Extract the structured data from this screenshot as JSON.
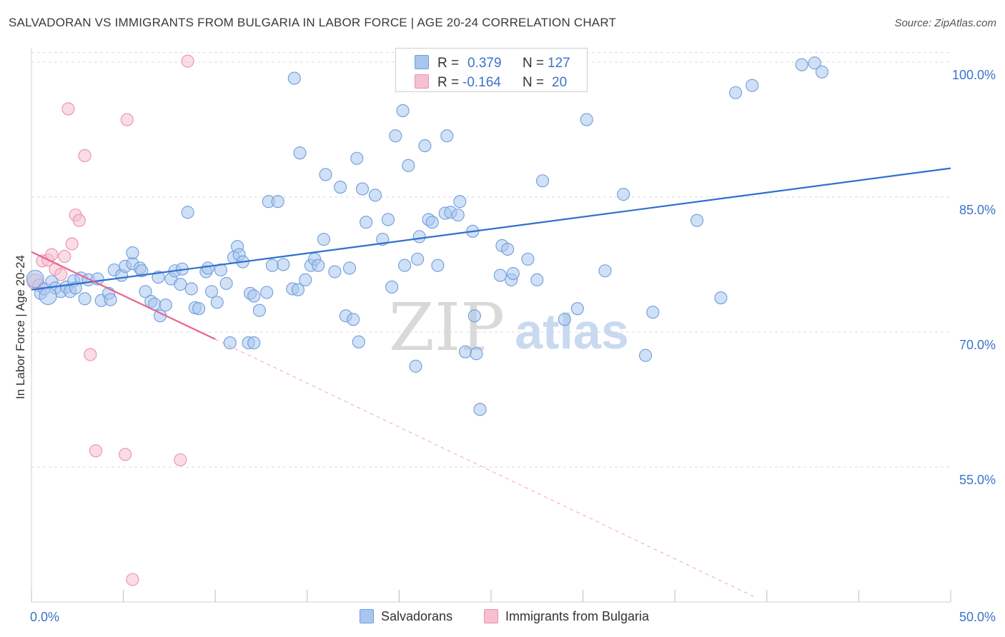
{
  "header": {
    "title": "SALVADORAN VS IMMIGRANTS FROM BULGARIA IN LABOR FORCE | AGE 20-24 CORRELATION CHART",
    "source": "Source: ZipAtlas.com"
  },
  "watermark": {
    "zip": "ZIP",
    "atlas": "atlas"
  },
  "legend_top": {
    "rows": [
      {
        "r_label": "R =",
        "r_value": "0.379",
        "n_label": "N =",
        "n_value": "127",
        "color": "#7aa6e0"
      },
      {
        "r_label": "R =",
        "r_value": "-0.164",
        "n_label": "N =",
        "n_value": "20",
        "color": "#f090ae"
      }
    ]
  },
  "legend_bottom": {
    "items": [
      "Salvadorans",
      "Immigrants from Bulgaria"
    ]
  },
  "colors": {
    "blue_fill": "#a9c6ef",
    "blue_stroke": "#6f9ddc",
    "blue_line": "#2f6fce",
    "pink_fill": "#f6c0d0",
    "pink_stroke": "#ec8fab",
    "pink_line": "#e8648f",
    "axis_text": "#3b74c9",
    "grid": "#dcdcdc"
  },
  "chart_data": {
    "type": "scatter",
    "title": "SALVADORAN VS IMMIGRANTS FROM BULGARIA IN LABOR FORCE | AGE 20-24 CORRELATION CHART",
    "xlabel": "",
    "ylabel": "In Labor Force | Age 20-24",
    "xlim": [
      0,
      50
    ],
    "ylim": [
      40,
      101.5
    ],
    "x_tick_labels": [
      "0.0%",
      "50.0%"
    ],
    "y_ticks": [
      55,
      70,
      85,
      100
    ],
    "y_tick_labels": [
      "55.0%",
      "70.0%",
      "85.0%",
      "100.0%"
    ],
    "grid": true,
    "series": [
      {
        "name": "Salvadorans",
        "r": 0.379,
        "n": 127,
        "trend": {
          "x": [
            0,
            50
          ],
          "y": [
            74.7,
            88.2
          ]
        },
        "points": [
          [
            0.2,
            75.9
          ],
          [
            0.5,
            74.3
          ],
          [
            0.7,
            74.8
          ],
          [
            1.1,
            75.6
          ],
          [
            1.3,
            74.9
          ],
          [
            1.6,
            74.5
          ],
          [
            1.9,
            75.0
          ],
          [
            2.1,
            74.5
          ],
          [
            2.3,
            75.7
          ],
          [
            2.4,
            74.9
          ],
          [
            2.7,
            76.0
          ],
          [
            2.9,
            73.7
          ],
          [
            3.1,
            75.8
          ],
          [
            3.6,
            75.9
          ],
          [
            3.8,
            73.5
          ],
          [
            4.2,
            74.3
          ],
          [
            4.3,
            73.6
          ],
          [
            4.5,
            76.9
          ],
          [
            4.9,
            76.3
          ],
          [
            5.1,
            77.3
          ],
          [
            5.5,
            77.6
          ],
          [
            5.5,
            78.8
          ],
          [
            5.9,
            77.1
          ],
          [
            6.0,
            76.8
          ],
          [
            6.2,
            74.5
          ],
          [
            6.5,
            73.4
          ],
          [
            6.7,
            73.1
          ],
          [
            6.9,
            76.1
          ],
          [
            7.0,
            71.8
          ],
          [
            7.3,
            73.0
          ],
          [
            7.6,
            75.9
          ],
          [
            7.8,
            76.8
          ],
          [
            8.1,
            75.3
          ],
          [
            8.2,
            77.0
          ],
          [
            8.5,
            83.3
          ],
          [
            8.7,
            74.8
          ],
          [
            8.9,
            72.7
          ],
          [
            9.1,
            72.6
          ],
          [
            9.5,
            76.7
          ],
          [
            9.6,
            77.1
          ],
          [
            9.8,
            74.5
          ],
          [
            10.1,
            73.3
          ],
          [
            10.3,
            76.9
          ],
          [
            10.6,
            75.4
          ],
          [
            10.8,
            68.8
          ],
          [
            11.0,
            78.3
          ],
          [
            11.2,
            79.5
          ],
          [
            11.3,
            78.6
          ],
          [
            11.5,
            77.8
          ],
          [
            11.8,
            68.8
          ],
          [
            11.9,
            74.3
          ],
          [
            12.1,
            68.8
          ],
          [
            12.1,
            74.0
          ],
          [
            12.4,
            72.4
          ],
          [
            12.8,
            74.4
          ],
          [
            12.9,
            84.5
          ],
          [
            13.1,
            77.4
          ],
          [
            13.4,
            84.5
          ],
          [
            13.7,
            77.5
          ],
          [
            14.2,
            74.8
          ],
          [
            14.3,
            98.2
          ],
          [
            14.5,
            74.7
          ],
          [
            14.6,
            89.9
          ],
          [
            14.9,
            75.8
          ],
          [
            15.2,
            77.4
          ],
          [
            15.4,
            78.1
          ],
          [
            15.6,
            77.4
          ],
          [
            15.9,
            80.3
          ],
          [
            16.0,
            87.5
          ],
          [
            16.5,
            76.7
          ],
          [
            16.8,
            86.1
          ],
          [
            17.1,
            71.8
          ],
          [
            17.3,
            77.1
          ],
          [
            17.5,
            71.4
          ],
          [
            17.7,
            89.3
          ],
          [
            17.8,
            68.9
          ],
          [
            18.0,
            85.9
          ],
          [
            18.2,
            82.2
          ],
          [
            18.7,
            85.2
          ],
          [
            19.1,
            80.3
          ],
          [
            19.4,
            82.5
          ],
          [
            19.6,
            75.0
          ],
          [
            19.8,
            91.8
          ],
          [
            20.2,
            94.6
          ],
          [
            20.3,
            77.4
          ],
          [
            20.5,
            88.5
          ],
          [
            20.9,
            66.2
          ],
          [
            21.0,
            78.1
          ],
          [
            21.1,
            80.6
          ],
          [
            21.4,
            90.7
          ],
          [
            21.6,
            82.5
          ],
          [
            21.8,
            82.2
          ],
          [
            22.1,
            77.4
          ],
          [
            22.5,
            83.2
          ],
          [
            22.6,
            91.8
          ],
          [
            22.8,
            83.3
          ],
          [
            23.2,
            83.0
          ],
          [
            23.3,
            84.5
          ],
          [
            23.6,
            67.8
          ],
          [
            24.0,
            81.2
          ],
          [
            24.1,
            71.8
          ],
          [
            24.2,
            67.6
          ],
          [
            24.4,
            61.4
          ],
          [
            25.5,
            76.3
          ],
          [
            25.6,
            79.6
          ],
          [
            25.9,
            79.2
          ],
          [
            26.1,
            75.8
          ],
          [
            26.2,
            76.5
          ],
          [
            27.0,
            78.1
          ],
          [
            27.5,
            75.8
          ],
          [
            27.8,
            86.8
          ],
          [
            29.0,
            71.4
          ],
          [
            29.7,
            72.6
          ],
          [
            30.2,
            93.6
          ],
          [
            31.2,
            76.8
          ],
          [
            32.2,
            85.3
          ],
          [
            33.4,
            67.4
          ],
          [
            33.8,
            72.2
          ],
          [
            36.2,
            82.4
          ],
          [
            37.5,
            73.8
          ],
          [
            38.3,
            96.6
          ],
          [
            39.2,
            97.4
          ],
          [
            41.9,
            99.7
          ],
          [
            42.6,
            99.9
          ],
          [
            43.0,
            98.9
          ],
          [
            28.0,
            99.2
          ],
          [
            0.9,
            74.0
          ]
        ]
      },
      {
        "name": "Immigrants from Bulgaria",
        "r": -0.164,
        "n": 20,
        "trend": {
          "x": [
            0,
            10
          ],
          "y": [
            78.9,
            69.2
          ]
        },
        "trend_extension": {
          "x": [
            10,
            39.4
          ],
          "y": [
            69.2,
            40.5
          ]
        },
        "points": [
          [
            0.2,
            75.6
          ],
          [
            0.6,
            77.9
          ],
          [
            0.9,
            78.0
          ],
          [
            1.1,
            78.6
          ],
          [
            1.3,
            77.0
          ],
          [
            1.6,
            76.4
          ],
          [
            1.8,
            78.4
          ],
          [
            2.0,
            94.8
          ],
          [
            2.2,
            79.8
          ],
          [
            2.4,
            83.0
          ],
          [
            2.6,
            82.4
          ],
          [
            2.9,
            89.6
          ],
          [
            3.2,
            67.5
          ],
          [
            3.5,
            56.8
          ],
          [
            5.1,
            56.4
          ],
          [
            5.2,
            93.6
          ],
          [
            5.5,
            42.5
          ],
          [
            8.1,
            55.8
          ],
          [
            8.5,
            100.1
          ],
          [
            0.4,
            75.2
          ]
        ]
      }
    ]
  }
}
